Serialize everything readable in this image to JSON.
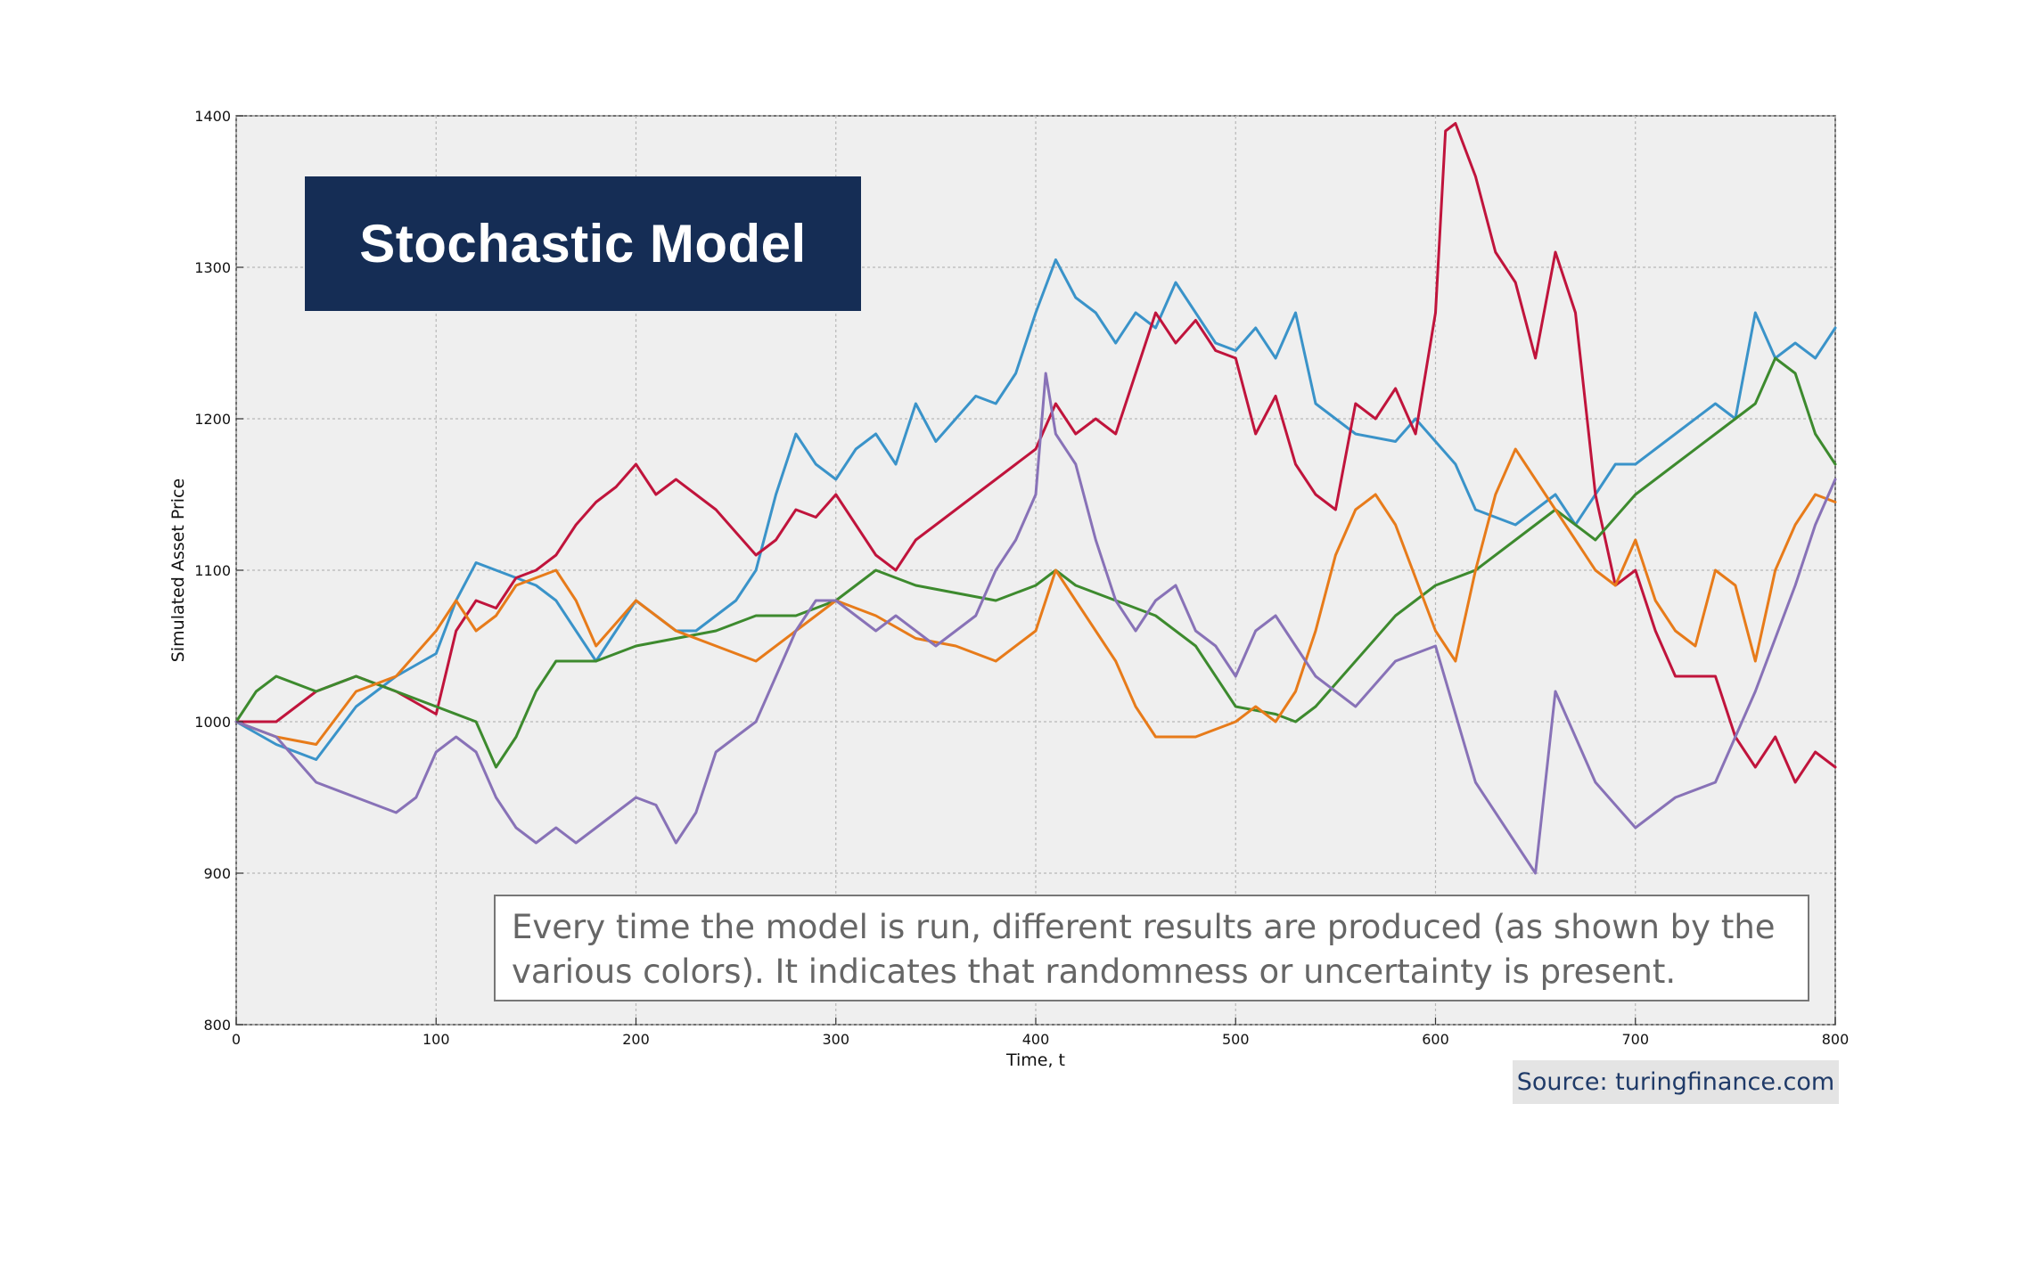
{
  "chart_data": {
    "type": "line",
    "title": "Stochastic Model",
    "xlabel": "Time, t",
    "ylabel": "Simulated Asset Price",
    "xlim": [
      0,
      800
    ],
    "ylim": [
      800,
      1400
    ],
    "xticks": [
      0,
      100,
      200,
      300,
      400,
      500,
      600,
      700,
      800
    ],
    "yticks": [
      800,
      900,
      1000,
      1100,
      1200,
      1300,
      1400
    ],
    "grid": true,
    "annotation": "Every time the model is run, different results are produced (as shown by the various colors). It indicates that randomness or uncertainty is present.",
    "source": "Source: turingfinance.com",
    "series": [
      {
        "name": "blue",
        "color": "#3a93c9",
        "x": [
          0,
          20,
          40,
          60,
          80,
          100,
          110,
          120,
          130,
          140,
          150,
          160,
          170,
          180,
          200,
          220,
          230,
          240,
          250,
          260,
          270,
          280,
          290,
          300,
          310,
          320,
          330,
          340,
          350,
          360,
          370,
          380,
          390,
          400,
          410,
          420,
          430,
          440,
          450,
          460,
          470,
          480,
          490,
          500,
          510,
          520,
          530,
          540,
          560,
          580,
          590,
          600,
          610,
          620,
          640,
          650,
          660,
          670,
          680,
          690,
          700,
          710,
          720,
          740,
          750,
          760,
          770,
          780,
          790,
          800
        ],
        "y": [
          1000,
          985,
          975,
          1010,
          1030,
          1045,
          1080,
          1105,
          1100,
          1095,
          1090,
          1080,
          1060,
          1040,
          1080,
          1060,
          1060,
          1070,
          1080,
          1100,
          1150,
          1190,
          1170,
          1160,
          1180,
          1190,
          1170,
          1210,
          1185,
          1200,
          1215,
          1210,
          1230,
          1270,
          1305,
          1280,
          1270,
          1250,
          1270,
          1260,
          1290,
          1270,
          1250,
          1245,
          1260,
          1240,
          1270,
          1210,
          1190,
          1185,
          1200,
          1185,
          1170,
          1140,
          1130,
          1140,
          1150,
          1130,
          1150,
          1170,
          1170,
          1180,
          1190,
          1210,
          1200,
          1270,
          1240,
          1250,
          1240,
          1260
        ]
      },
      {
        "name": "red",
        "color": "#c0143c",
        "x": [
          0,
          20,
          40,
          60,
          80,
          100,
          110,
          120,
          130,
          140,
          150,
          160,
          170,
          180,
          190,
          200,
          210,
          220,
          230,
          240,
          250,
          260,
          270,
          280,
          290,
          300,
          310,
          320,
          330,
          340,
          350,
          360,
          370,
          380,
          390,
          400,
          410,
          420,
          430,
          440,
          450,
          460,
          470,
          480,
          490,
          500,
          510,
          520,
          530,
          540,
          550,
          560,
          570,
          580,
          590,
          600,
          605,
          610,
          620,
          630,
          640,
          650,
          660,
          670,
          680,
          690,
          700,
          710,
          720,
          740,
          750,
          760,
          770,
          780,
          790,
          800
        ],
        "y": [
          1000,
          1000,
          1020,
          1030,
          1020,
          1005,
          1060,
          1080,
          1075,
          1095,
          1100,
          1110,
          1130,
          1145,
          1155,
          1170,
          1150,
          1160,
          1150,
          1140,
          1125,
          1110,
          1120,
          1140,
          1135,
          1150,
          1130,
          1110,
          1100,
          1120,
          1130,
          1140,
          1150,
          1160,
          1170,
          1180,
          1210,
          1190,
          1200,
          1190,
          1230,
          1270,
          1250,
          1265,
          1245,
          1240,
          1190,
          1215,
          1170,
          1150,
          1140,
          1210,
          1200,
          1220,
          1190,
          1270,
          1390,
          1395,
          1360,
          1310,
          1290,
          1240,
          1310,
          1270,
          1150,
          1090,
          1100,
          1060,
          1030,
          1030,
          990,
          970,
          990,
          960,
          980,
          970
        ]
      },
      {
        "name": "green",
        "color": "#3d8a2e",
        "x": [
          0,
          10,
          20,
          40,
          60,
          80,
          100,
          120,
          130,
          140,
          150,
          160,
          180,
          200,
          220,
          240,
          260,
          280,
          300,
          320,
          340,
          360,
          380,
          400,
          410,
          420,
          440,
          460,
          480,
          500,
          520,
          530,
          540,
          560,
          580,
          600,
          620,
          640,
          660,
          680,
          700,
          720,
          740,
          760,
          770,
          780,
          790,
          800
        ],
        "y": [
          1000,
          1020,
          1030,
          1020,
          1030,
          1020,
          1010,
          1000,
          970,
          990,
          1020,
          1040,
          1040,
          1050,
          1055,
          1060,
          1070,
          1070,
          1080,
          1100,
          1090,
          1085,
          1080,
          1090,
          1100,
          1090,
          1080,
          1070,
          1050,
          1010,
          1005,
          1000,
          1010,
          1040,
          1070,
          1090,
          1100,
          1120,
          1140,
          1120,
          1150,
          1170,
          1190,
          1210,
          1240,
          1230,
          1190,
          1170
        ]
      },
      {
        "name": "orange",
        "color": "#e77b1a",
        "x": [
          0,
          20,
          40,
          60,
          80,
          100,
          110,
          120,
          130,
          140,
          150,
          160,
          170,
          180,
          200,
          220,
          240,
          260,
          280,
          300,
          320,
          340,
          360,
          380,
          400,
          410,
          420,
          440,
          450,
          460,
          480,
          500,
          510,
          520,
          530,
          540,
          550,
          560,
          570,
          580,
          600,
          610,
          620,
          630,
          640,
          650,
          660,
          670,
          680,
          690,
          700,
          710,
          720,
          730,
          740,
          750,
          760,
          770,
          780,
          790,
          800
        ],
        "y": [
          1000,
          990,
          985,
          1020,
          1030,
          1060,
          1080,
          1060,
          1070,
          1090,
          1095,
          1100,
          1080,
          1050,
          1080,
          1060,
          1050,
          1040,
          1060,
          1080,
          1070,
          1055,
          1050,
          1040,
          1060,
          1100,
          1080,
          1040,
          1010,
          990,
          990,
          1000,
          1010,
          1000,
          1020,
          1060,
          1110,
          1140,
          1150,
          1130,
          1060,
          1040,
          1100,
          1150,
          1180,
          1160,
          1140,
          1120,
          1100,
          1090,
          1120,
          1080,
          1060,
          1050,
          1100,
          1090,
          1040,
          1100,
          1130,
          1150,
          1145
        ]
      },
      {
        "name": "purple",
        "color": "#8872b7",
        "x": [
          0,
          20,
          40,
          60,
          80,
          90,
          100,
          110,
          120,
          130,
          140,
          150,
          160,
          170,
          180,
          190,
          200,
          210,
          220,
          230,
          240,
          250,
          260,
          270,
          280,
          290,
          300,
          310,
          320,
          330,
          340,
          350,
          360,
          370,
          380,
          390,
          400,
          405,
          410,
          420,
          430,
          440,
          450,
          460,
          470,
          480,
          490,
          500,
          510,
          520,
          530,
          540,
          560,
          580,
          600,
          620,
          640,
          650,
          660,
          680,
          700,
          720,
          740,
          760,
          780,
          790,
          800
        ],
        "y": [
          1000,
          990,
          960,
          950,
          940,
          950,
          980,
          990,
          980,
          950,
          930,
          920,
          930,
          920,
          930,
          940,
          950,
          945,
          920,
          940,
          980,
          990,
          1000,
          1030,
          1060,
          1080,
          1080,
          1070,
          1060,
          1070,
          1060,
          1050,
          1060,
          1070,
          1100,
          1120,
          1150,
          1230,
          1190,
          1170,
          1120,
          1080,
          1060,
          1080,
          1090,
          1060,
          1050,
          1030,
          1060,
          1070,
          1050,
          1030,
          1010,
          1040,
          1050,
          960,
          920,
          900,
          1020,
          960,
          930,
          950,
          960,
          1020,
          1090,
          1130,
          1160
        ]
      }
    ]
  }
}
